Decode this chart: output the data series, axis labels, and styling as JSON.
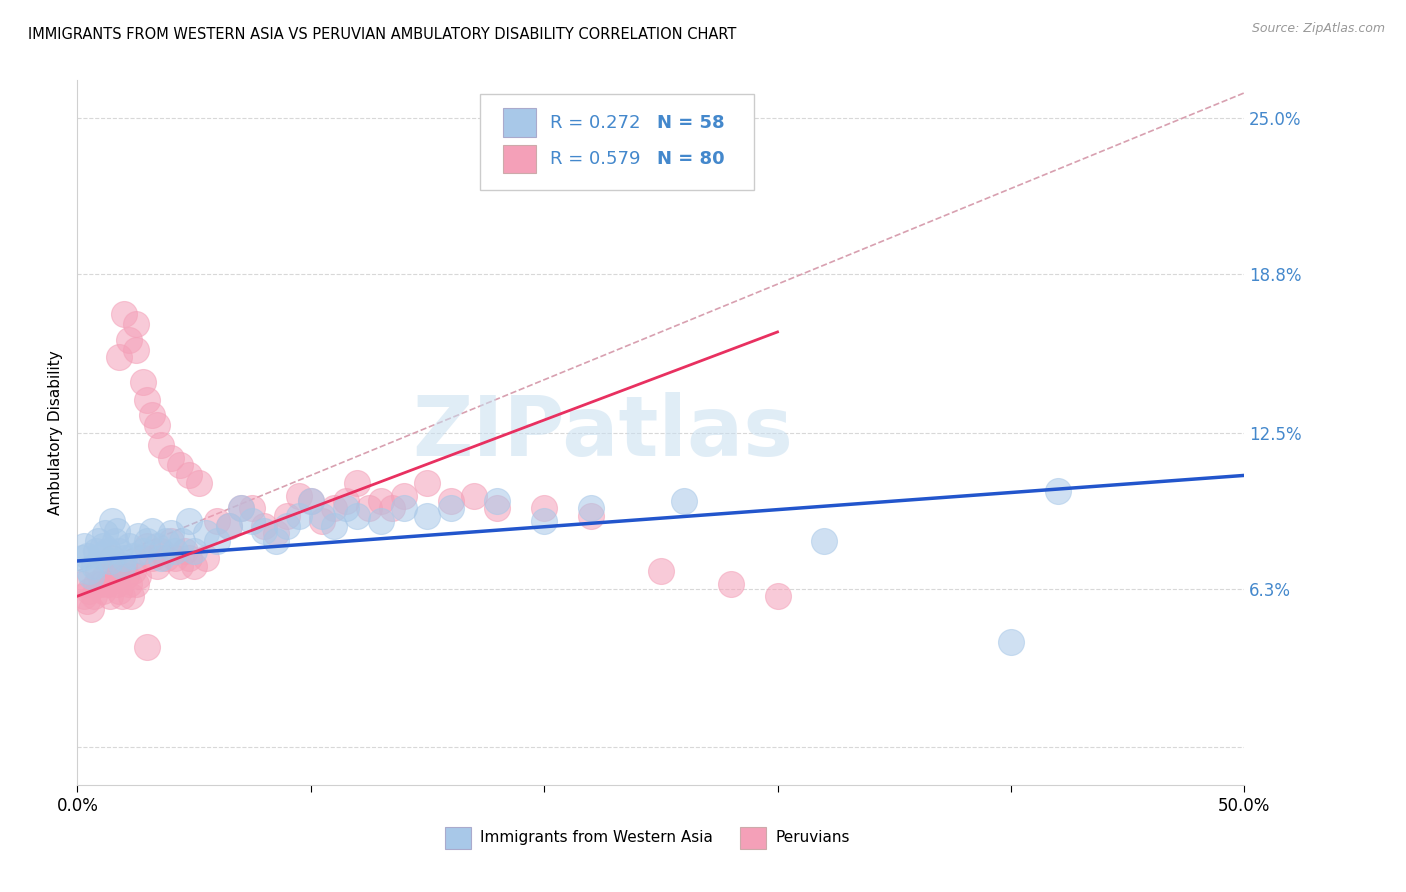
{
  "title": "IMMIGRANTS FROM WESTERN ASIA VS PERUVIAN AMBULATORY DISABILITY CORRELATION CHART",
  "source_text": "Source: ZipAtlas.com",
  "ylabel": "Ambulatory Disability",
  "xmin": 0.0,
  "xmax": 0.5,
  "ymin": -0.015,
  "ymax": 0.265,
  "yticks": [
    0.0,
    0.063,
    0.125,
    0.188,
    0.25
  ],
  "ytick_labels": [
    "",
    "6.3%",
    "12.5%",
    "18.8%",
    "25.0%"
  ],
  "xticks": [
    0.0,
    0.1,
    0.2,
    0.3,
    0.4,
    0.5
  ],
  "xtick_labels": [
    "0.0%",
    "",
    "",
    "",
    "",
    "50.0%"
  ],
  "color_blue": "#a8c8e8",
  "color_pink": "#f4a0b8",
  "legend_color": "#4488cc",
  "series1_label": "Immigrants from Western Asia",
  "series2_label": "Peruvians",
  "watermark": "ZIPatlas",
  "watermark_color": "#c8dff0",
  "blue_scatter_x": [
    0.002,
    0.003,
    0.004,
    0.005,
    0.006,
    0.007,
    0.008,
    0.009,
    0.01,
    0.011,
    0.012,
    0.013,
    0.014,
    0.015,
    0.016,
    0.017,
    0.018,
    0.019,
    0.02,
    0.022,
    0.024,
    0.026,
    0.028,
    0.03,
    0.032,
    0.034,
    0.036,
    0.038,
    0.04,
    0.042,
    0.045,
    0.048,
    0.05,
    0.055,
    0.06,
    0.065,
    0.07,
    0.075,
    0.08,
    0.085,
    0.09,
    0.095,
    0.1,
    0.105,
    0.11,
    0.115,
    0.12,
    0.13,
    0.14,
    0.15,
    0.16,
    0.18,
    0.2,
    0.22,
    0.26,
    0.32,
    0.4,
    0.42
  ],
  "blue_scatter_y": [
    0.075,
    0.08,
    0.076,
    0.07,
    0.068,
    0.072,
    0.078,
    0.082,
    0.076,
    0.08,
    0.085,
    0.078,
    0.074,
    0.09,
    0.082,
    0.086,
    0.078,
    0.072,
    0.075,
    0.08,
    0.076,
    0.084,
    0.078,
    0.082,
    0.086,
    0.08,
    0.075,
    0.082,
    0.085,
    0.078,
    0.082,
    0.09,
    0.078,
    0.085,
    0.082,
    0.088,
    0.095,
    0.09,
    0.086,
    0.082,
    0.088,
    0.092,
    0.098,
    0.092,
    0.088,
    0.095,
    0.092,
    0.09,
    0.095,
    0.092,
    0.095,
    0.098,
    0.09,
    0.095,
    0.098,
    0.082,
    0.042,
    0.102
  ],
  "pink_scatter_x": [
    0.002,
    0.003,
    0.004,
    0.005,
    0.006,
    0.007,
    0.008,
    0.009,
    0.01,
    0.011,
    0.012,
    0.013,
    0.014,
    0.015,
    0.016,
    0.017,
    0.018,
    0.019,
    0.02,
    0.021,
    0.022,
    0.023,
    0.024,
    0.025,
    0.026,
    0.028,
    0.03,
    0.032,
    0.034,
    0.036,
    0.038,
    0.04,
    0.042,
    0.044,
    0.046,
    0.048,
    0.05,
    0.055,
    0.06,
    0.065,
    0.07,
    0.075,
    0.08,
    0.085,
    0.09,
    0.095,
    0.1,
    0.105,
    0.11,
    0.115,
    0.12,
    0.125,
    0.13,
    0.135,
    0.14,
    0.15,
    0.16,
    0.17,
    0.18,
    0.2,
    0.22,
    0.25,
    0.28,
    0.3,
    0.018,
    0.022,
    0.025,
    0.028,
    0.03,
    0.032,
    0.034,
    0.036,
    0.04,
    0.044,
    0.048,
    0.052,
    0.02,
    0.025,
    0.03
  ],
  "pink_scatter_y": [
    0.065,
    0.06,
    0.058,
    0.062,
    0.055,
    0.06,
    0.065,
    0.07,
    0.065,
    0.062,
    0.068,
    0.065,
    0.06,
    0.075,
    0.07,
    0.065,
    0.062,
    0.06,
    0.072,
    0.068,
    0.065,
    0.06,
    0.07,
    0.065,
    0.068,
    0.075,
    0.08,
    0.075,
    0.072,
    0.078,
    0.075,
    0.082,
    0.075,
    0.072,
    0.078,
    0.075,
    0.072,
    0.075,
    0.09,
    0.088,
    0.095,
    0.095,
    0.088,
    0.085,
    0.092,
    0.1,
    0.098,
    0.09,
    0.095,
    0.098,
    0.105,
    0.095,
    0.098,
    0.095,
    0.1,
    0.105,
    0.098,
    0.1,
    0.095,
    0.095,
    0.092,
    0.07,
    0.065,
    0.06,
    0.155,
    0.162,
    0.158,
    0.145,
    0.138,
    0.132,
    0.128,
    0.12,
    0.115,
    0.112,
    0.108,
    0.105,
    0.172,
    0.168,
    0.04
  ],
  "blue_line_x": [
    0.0,
    0.5
  ],
  "blue_line_y": [
    0.074,
    0.108
  ],
  "pink_line_x": [
    0.0,
    0.3
  ],
  "pink_line_y": [
    0.06,
    0.165
  ],
  "dash_line_x": [
    0.0,
    0.5
  ],
  "dash_line_y": [
    0.07,
    0.26
  ]
}
